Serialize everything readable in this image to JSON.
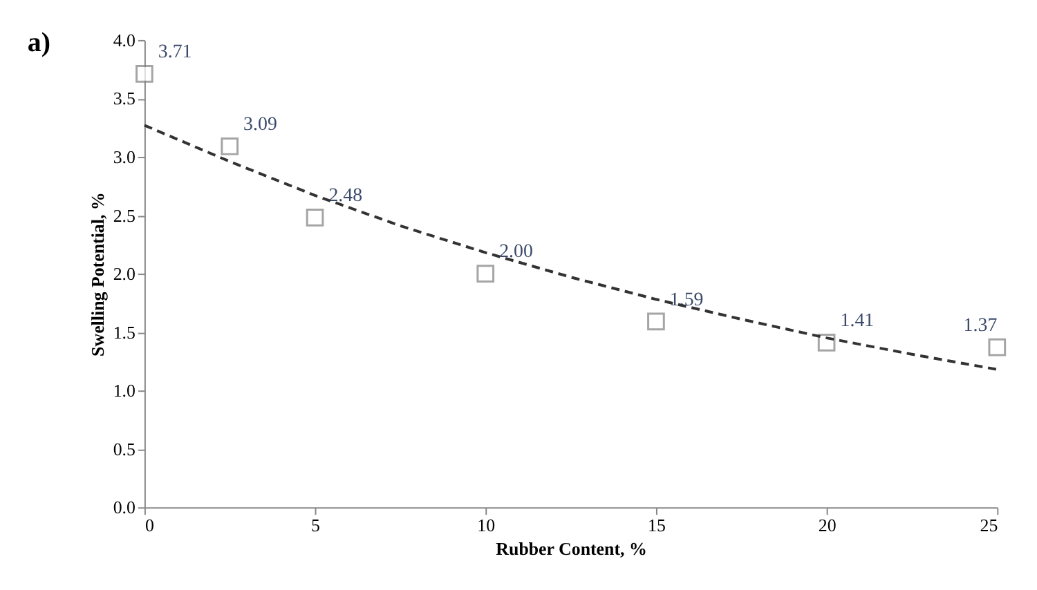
{
  "chart_data": {
    "type": "scatter",
    "xlabel": "Rubber Content, %",
    "ylabel": "Swelling Potential, %",
    "annotations": [
      "a)"
    ],
    "xlim": [
      0,
      25
    ],
    "xticks": [
      0,
      5,
      10,
      15,
      20,
      25
    ],
    "ylim": [
      0,
      4
    ],
    "yticks": [
      {
        "value": 0,
        "label": "0.0"
      },
      {
        "value": 0.5,
        "label": "0.5"
      },
      {
        "value": 1,
        "label": "1.0"
      },
      {
        "value": 1.5,
        "label": "1.5"
      },
      {
        "value": 2,
        "label": "2.0"
      },
      {
        "value": 2.5,
        "label": "2.5"
      },
      {
        "value": 3,
        "label": "3.0"
      },
      {
        "value": 3.5,
        "label": "3.5"
      },
      {
        "value": 4,
        "label": "4.0"
      }
    ],
    "grid": false,
    "marker": "square",
    "series": [
      {
        "color": "#7f7f7f",
        "x": [
          0,
          2.5,
          5,
          10,
          15,
          20,
          25
        ],
        "values": [
          3.71,
          3.09,
          2.48,
          2.0,
          1.59,
          1.41,
          1.37
        ],
        "value_labels": [
          "3.71",
          "3.09",
          "2.48",
          "2.00",
          "1.59",
          "1.41",
          "1.37"
        ]
      },
      {
        "type": "line",
        "color": "#333333",
        "line_style": "dashed",
        "marker": "none",
        "x": [
          0,
          2.5,
          5,
          7.5,
          10,
          12.5,
          15,
          17.5,
          20,
          22.5,
          25
        ],
        "values": [
          3.27,
          2.96,
          2.67,
          2.41,
          2.18,
          1.97,
          1.78,
          1.61,
          1.45,
          1.31,
          1.18
        ]
      }
    ]
  }
}
